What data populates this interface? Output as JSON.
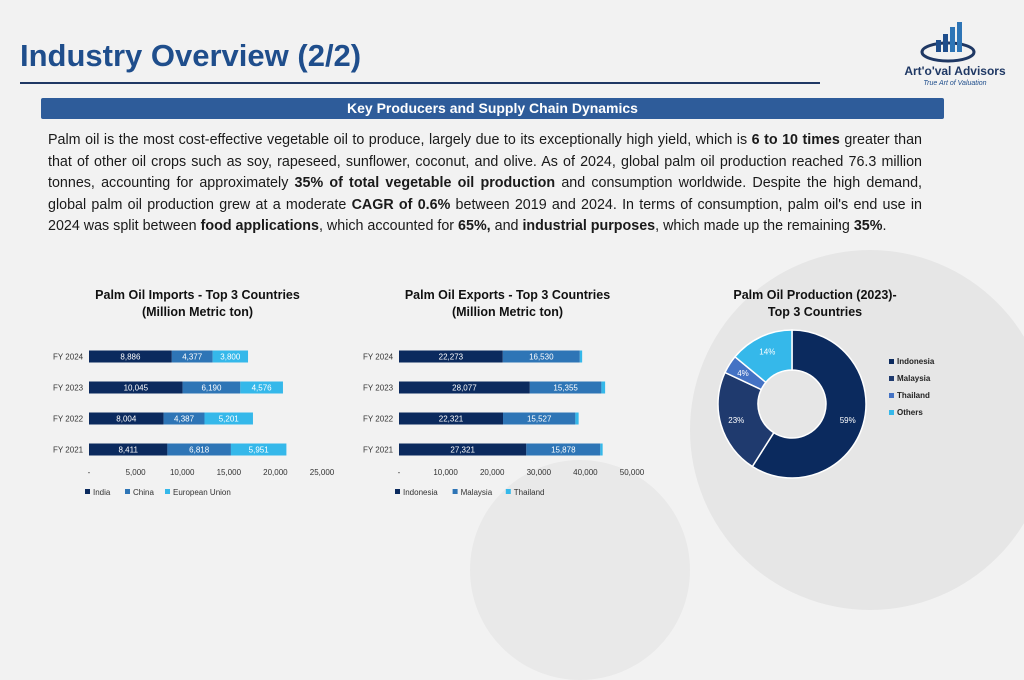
{
  "header": {
    "title": "Industry Overview (2/2)",
    "logo_name": "Art'o'val Advisors",
    "logo_tag": "True Art of Valuation"
  },
  "banner": {
    "text": "Key Producers and Supply Chain Dynamics"
  },
  "paragraph": [
    {
      "t": "Palm oil is the most cost-effective vegetable oil to produce, largely due to its exceptionally high yield, which is ",
      "b": false
    },
    {
      "t": "6 to 10 times",
      "b": true
    },
    {
      "t": " greater than that of other oil crops such as soy, rapeseed, sunflower, coconut, and olive. As of 2024, global palm oil production reached 76.3 million tonnes, accounting for approximately ",
      "b": false
    },
    {
      "t": "35% of total vegetable oil production",
      "b": true
    },
    {
      "t": " and consumption worldwide. Despite the high demand, global palm oil production grew at a moderate ",
      "b": false
    },
    {
      "t": "CAGR of 0.6%",
      "b": true
    },
    {
      "t": " between 2019 and 2024. In terms of consumption, palm oil's end use in 2024 was split between ",
      "b": false
    },
    {
      "t": "food applications",
      "b": true
    },
    {
      "t": ", which accounted for ",
      "b": false
    },
    {
      "t": "65%,",
      "b": true
    },
    {
      "t": " and ",
      "b": false
    },
    {
      "t": "industrial purposes",
      "b": true
    },
    {
      "t": ", which made up the remaining ",
      "b": false
    },
    {
      "t": "35%",
      "b": true
    },
    {
      "t": ".",
      "b": false
    }
  ],
  "chart_data": [
    {
      "type": "bar",
      "orientation": "horizontal",
      "stacked": true,
      "title": "Palm Oil Imports - Top 3 Countries",
      "subtitle": "(Million Metric ton)",
      "categories": [
        "FY 2024",
        "FY 2023",
        "FY 2022",
        "FY 2021"
      ],
      "series": [
        {
          "name": "India",
          "values": [
            8886,
            10045,
            8004,
            8411
          ],
          "labels": [
            "8,886",
            "10,045",
            "8,004",
            "8,411"
          ],
          "color": "#0b2a5e"
        },
        {
          "name": "China",
          "values": [
            4377,
            6190,
            4387,
            6818
          ],
          "labels": [
            "4,377",
            "6,190",
            "4,387",
            "6,818"
          ],
          "color": "#2e75b6"
        },
        {
          "name": "European Union",
          "values": [
            3800,
            4576,
            5201,
            5951
          ],
          "labels": [
            "3,800",
            "4,576",
            "5,201",
            "5,951"
          ],
          "color": "#35b8ea"
        }
      ],
      "xticks": [
        "-",
        "5,000",
        "10,000",
        "15,000",
        "20,000",
        "25,000"
      ],
      "xlim": [
        0,
        25000
      ],
      "legend": "bottom"
    },
    {
      "type": "bar",
      "orientation": "horizontal",
      "stacked": true,
      "title": "Palm Oil Exports - Top 3 Countries",
      "subtitle": "(Million Metric ton)",
      "categories": [
        "FY 2024",
        "FY 2023",
        "FY 2022",
        "FY 2021"
      ],
      "series": [
        {
          "name": "Indonesia",
          "values": [
            22273,
            28077,
            22321,
            27321
          ],
          "labels": [
            "22,273",
            "28,077",
            "22,321",
            "27,321"
          ],
          "color": "#0b2a5e"
        },
        {
          "name": "Malaysia",
          "values": [
            16530,
            15355,
            15527,
            15878
          ],
          "labels": [
            "16,530",
            "15,355",
            "15,527",
            "15,878"
          ],
          "color": "#2e75b6"
        },
        {
          "name": "Thailand",
          "values": [
            500,
            800,
            700,
            500
          ],
          "labels": [
            "",
            "",
            "",
            ""
          ],
          "color": "#35b8ea"
        }
      ],
      "xticks": [
        "-",
        "10,000",
        "20,000",
        "30,000",
        "40,000",
        "50,000"
      ],
      "xlim": [
        0,
        50000
      ],
      "legend": "bottom"
    },
    {
      "type": "pie",
      "donut": true,
      "title": "Palm Oil Production (2023)-",
      "subtitle": "Top 3 Countries",
      "slices": [
        {
          "name": "Indonesia",
          "value": 59,
          "label": "59%",
          "color": "#0b2a5e"
        },
        {
          "name": "Malaysia",
          "value": 23,
          "label": "23%",
          "color": "#1f3a6e"
        },
        {
          "name": "Thailand",
          "value": 4,
          "label": "4%",
          "color": "#4472c4"
        },
        {
          "name": "Others",
          "value": 14,
          "label": "14%",
          "color": "#35b8ea"
        }
      ],
      "legend": "right"
    }
  ]
}
